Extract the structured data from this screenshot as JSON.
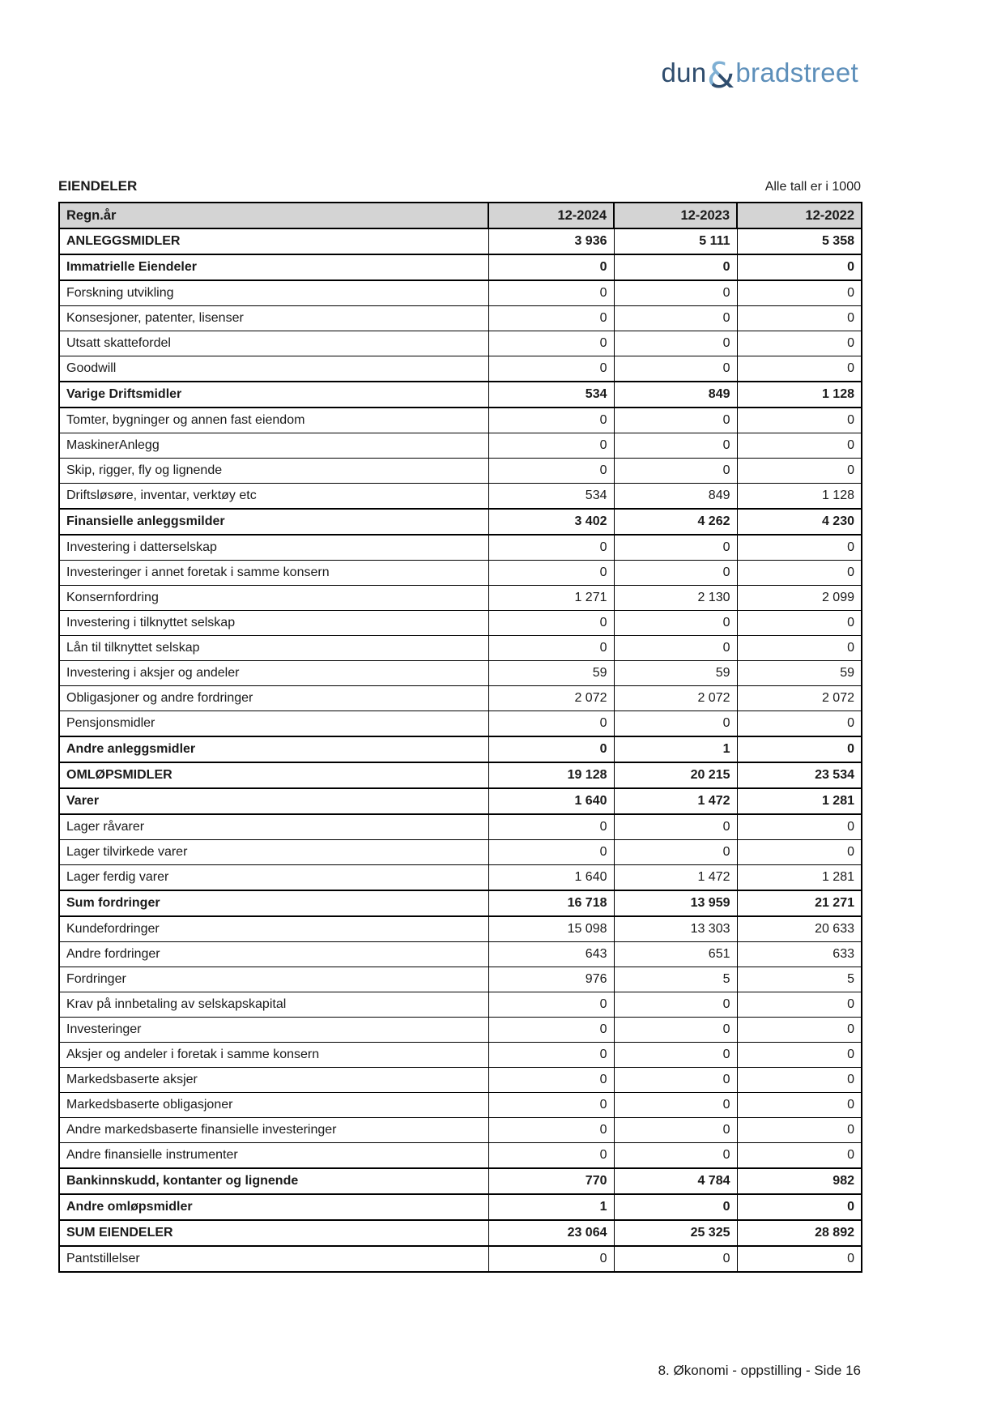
{
  "logo": {
    "part1": "dun",
    "ampersand": "&",
    "part2": "bradstreet",
    "color_dark": "#2f4d6e",
    "color_light": "#7fb0d4"
  },
  "section": {
    "title": "EIENDELER",
    "units_note": "Alle tall er i 1000"
  },
  "table": {
    "columns": [
      "Regn.år",
      "12-2024",
      "12-2023",
      "12-2022"
    ],
    "rows": [
      {
        "label": "ANLEGGSMIDLER",
        "values": [
          "3 936",
          "5 111",
          "5 358"
        ],
        "bold": true
      },
      {
        "label": "Immatrielle Eiendeler",
        "values": [
          "0",
          "0",
          "0"
        ],
        "bold": true
      },
      {
        "label": "Forskning utvikling",
        "values": [
          "0",
          "0",
          "0"
        ],
        "bold": false
      },
      {
        "label": "Konsesjoner, patenter, lisenser",
        "values": [
          "0",
          "0",
          "0"
        ],
        "bold": false
      },
      {
        "label": "Utsatt skattefordel",
        "values": [
          "0",
          "0",
          "0"
        ],
        "bold": false
      },
      {
        "label": "Goodwill",
        "values": [
          "0",
          "0",
          "0"
        ],
        "bold": false
      },
      {
        "label": "Varige Driftsmidler",
        "values": [
          "534",
          "849",
          "1 128"
        ],
        "bold": true
      },
      {
        "label": "Tomter, bygninger og annen fast eiendom",
        "values": [
          "0",
          "0",
          "0"
        ],
        "bold": false
      },
      {
        "label": "MaskinerAnlegg",
        "values": [
          "0",
          "0",
          "0"
        ],
        "bold": false
      },
      {
        "label": "Skip, rigger, fly og lignende",
        "values": [
          "0",
          "0",
          "0"
        ],
        "bold": false
      },
      {
        "label": "Driftsløsøre, inventar, verktøy etc",
        "values": [
          "534",
          "849",
          "1 128"
        ],
        "bold": false
      },
      {
        "label": "Finansielle anleggsmilder",
        "values": [
          "3 402",
          "4 262",
          "4 230"
        ],
        "bold": true
      },
      {
        "label": "Investering i datterselskap",
        "values": [
          "0",
          "0",
          "0"
        ],
        "bold": false
      },
      {
        "label": "Investeringer i annet foretak i samme konsern",
        "values": [
          "0",
          "0",
          "0"
        ],
        "bold": false
      },
      {
        "label": "Konsernfordring",
        "values": [
          "1 271",
          "2 130",
          "2 099"
        ],
        "bold": false
      },
      {
        "label": "Investering i tilknyttet selskap",
        "values": [
          "0",
          "0",
          "0"
        ],
        "bold": false
      },
      {
        "label": "Lån til tilknyttet selskap",
        "values": [
          "0",
          "0",
          "0"
        ],
        "bold": false
      },
      {
        "label": "Investering i aksjer og andeler",
        "values": [
          "59",
          "59",
          "59"
        ],
        "bold": false
      },
      {
        "label": "Obligasjoner og andre fordringer",
        "values": [
          "2 072",
          "2 072",
          "2 072"
        ],
        "bold": false
      },
      {
        "label": "Pensjonsmidler",
        "values": [
          "0",
          "0",
          "0"
        ],
        "bold": false
      },
      {
        "label": "Andre anleggsmidler",
        "values": [
          "0",
          "1",
          "0"
        ],
        "bold": true
      },
      {
        "label": "OMLØPSMIDLER",
        "values": [
          "19 128",
          "20 215",
          "23 534"
        ],
        "bold": true
      },
      {
        "label": "Varer",
        "values": [
          "1 640",
          "1 472",
          "1 281"
        ],
        "bold": true
      },
      {
        "label": "Lager råvarer",
        "values": [
          "0",
          "0",
          "0"
        ],
        "bold": false
      },
      {
        "label": "Lager tilvirkede varer",
        "values": [
          "0",
          "0",
          "0"
        ],
        "bold": false
      },
      {
        "label": "Lager ferdig varer",
        "values": [
          "1 640",
          "1 472",
          "1 281"
        ],
        "bold": false
      },
      {
        "label": "Sum fordringer",
        "values": [
          "16 718",
          "13 959",
          "21 271"
        ],
        "bold": true
      },
      {
        "label": "Kundefordringer",
        "values": [
          "15 098",
          "13 303",
          "20 633"
        ],
        "bold": false
      },
      {
        "label": "Andre fordringer",
        "values": [
          "643",
          "651",
          "633"
        ],
        "bold": false
      },
      {
        "label": "Fordringer",
        "values": [
          "976",
          "5",
          "5"
        ],
        "bold": false
      },
      {
        "label": "Krav på innbetaling av selskapskapital",
        "values": [
          "0",
          "0",
          "0"
        ],
        "bold": false
      },
      {
        "label": "Investeringer",
        "values": [
          "0",
          "0",
          "0"
        ],
        "bold": false
      },
      {
        "label": "Aksjer og andeler i foretak i samme konsern",
        "values": [
          "0",
          "0",
          "0"
        ],
        "bold": false
      },
      {
        "label": "Markedsbaserte aksjer",
        "values": [
          "0",
          "0",
          "0"
        ],
        "bold": false
      },
      {
        "label": "Markedsbaserte obligasjoner",
        "values": [
          "0",
          "0",
          "0"
        ],
        "bold": false
      },
      {
        "label": "Andre markedsbaserte finansielle investeringer",
        "values": [
          "0",
          "0",
          "0"
        ],
        "bold": false
      },
      {
        "label": "Andre finansielle instrumenter",
        "values": [
          "0",
          "0",
          "0"
        ],
        "bold": false
      },
      {
        "label": "Bankinnskudd, kontanter og lignende",
        "values": [
          "770",
          "4 784",
          "982"
        ],
        "bold": true
      },
      {
        "label": "Andre omløpsmidler",
        "values": [
          "1",
          "0",
          "0"
        ],
        "bold": true
      },
      {
        "label": "SUM EIENDELER",
        "values": [
          "23 064",
          "25 325",
          "28 892"
        ],
        "bold": true
      },
      {
        "label": "Pantstillelser",
        "values": [
          "0",
          "0",
          "0"
        ],
        "bold": false
      }
    ]
  },
  "footer": {
    "text": "8. Økonomi - oppstilling - Side 16"
  },
  "colors": {
    "header_bg": "#d4d4d4",
    "border": "#000000"
  }
}
